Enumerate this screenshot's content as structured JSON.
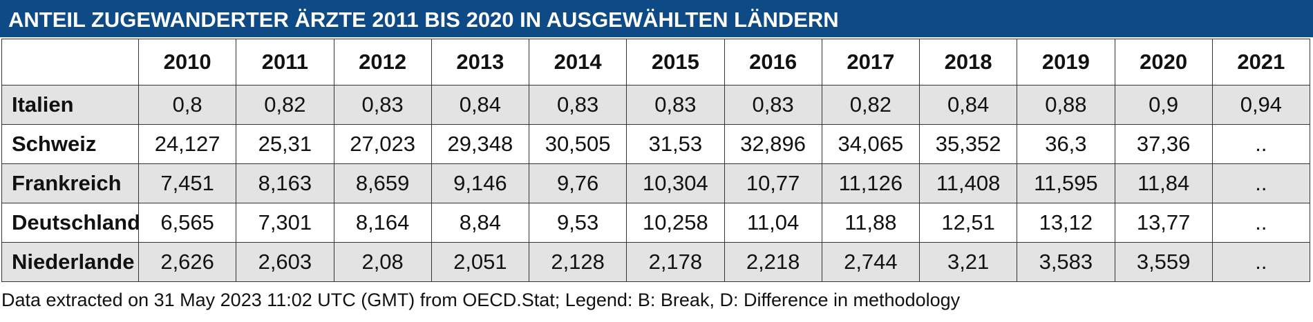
{
  "title": "ANTEIL ZUGEWANDERTER ÄRZTE 2011 BIS 2020 IN AUSGEWÄHLTEN LÄNDERN",
  "table": {
    "columns": [
      "2010",
      "2011",
      "2012",
      "2013",
      "2014",
      "2015",
      "2016",
      "2017",
      "2018",
      "2019",
      "2020",
      "2021"
    ],
    "rows": [
      {
        "label": "Italien",
        "cells": [
          "0,8",
          "0,82",
          "0,83",
          "0,84",
          "0,83",
          "0,83",
          "0,83",
          "0,82",
          "0,84",
          "0,88",
          "0,9",
          "0,94"
        ]
      },
      {
        "label": "Schweiz",
        "cells": [
          "24,127",
          "25,31",
          "27,023",
          "29,348",
          "30,505",
          "31,53",
          "32,896",
          "34,065",
          "35,352",
          "36,3",
          "37,36",
          ".."
        ]
      },
      {
        "label": "Frankreich",
        "cells": [
          "7,451",
          "8,163",
          "8,659",
          "9,146",
          "9,76",
          "10,304",
          "10,77",
          "11,126",
          "11,408",
          "11,595",
          "11,84",
          ".."
        ]
      },
      {
        "label": "Deutschland",
        "cells": [
          "6,565",
          "7,301",
          "8,164",
          "8,84",
          "9,53",
          "10,258",
          "11,04",
          "11,88",
          "12,51",
          "13,12",
          "13,77",
          ".."
        ]
      },
      {
        "label": "Niederlande",
        "cells": [
          "2,626",
          "2,603",
          "2,08",
          "2,051",
          "2,128",
          "2,178",
          "2,218",
          "2,744",
          "3,21",
          "3,583",
          "3,559",
          ".."
        ]
      }
    ]
  },
  "footnote": "Data extracted on 31 May 2023 11:02 UTC (GMT) from OECD.Stat; Legend: B: Break, D: Difference in methodology"
}
